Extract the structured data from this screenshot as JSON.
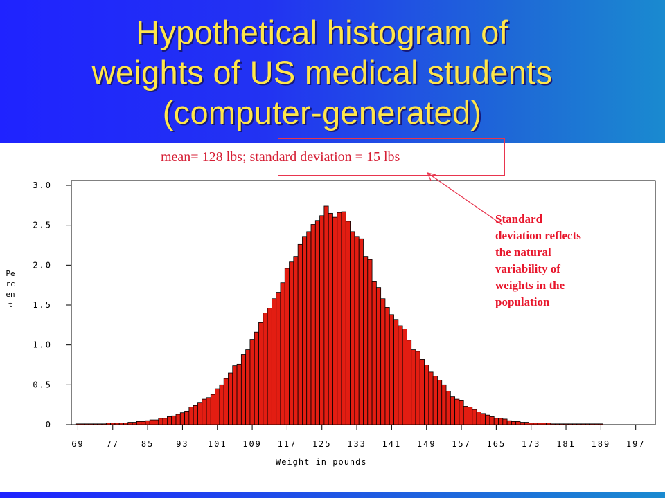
{
  "slide": {
    "title_lines": [
      "Hypothetical histogram of",
      "weights of US medical students",
      "(computer-generated)"
    ],
    "subtitle": "mean= 128 lbs; standard deviation = 15 lbs",
    "note_lines": [
      "Standard",
      "deviation reflects",
      "the natural",
      "variability of",
      "weights in the",
      "population"
    ],
    "colors": {
      "title_band": "#1f23ff",
      "title_text": "#ffe64a",
      "bar_fill": "#e31d12",
      "annotation": "#e8162c"
    }
  },
  "chart_data": {
    "type": "bar",
    "xlabel": "Weight in pounds",
    "ylabel": "Percent",
    "ylim": [
      0,
      3.0
    ],
    "xlim": [
      67.5,
      201.5
    ],
    "y_ticks": [
      0,
      0.5,
      1.0,
      1.5,
      2.0,
      2.5,
      3.0
    ],
    "y_tick_labels": [
      "0",
      "0.5",
      "1.0",
      "1.5",
      "2.0",
      "2.5",
      "3.0"
    ],
    "x_ticks": [
      69,
      77,
      85,
      93,
      101,
      109,
      117,
      125,
      133,
      141,
      149,
      157,
      165,
      173,
      181,
      189,
      197
    ],
    "x_tick_labels": [
      "69",
      "77",
      "85",
      "93",
      "101",
      "109",
      "117",
      "125",
      "133",
      "141",
      "149",
      "157",
      "165",
      "173",
      "181",
      "189",
      "197"
    ],
    "grid": false,
    "bar_start": 69,
    "bar_width": 1,
    "values": [
      0.01,
      0.01,
      0.01,
      0.01,
      0.01,
      0.01,
      0.01,
      0.02,
      0.02,
      0.02,
      0.02,
      0.02,
      0.03,
      0.03,
      0.04,
      0.04,
      0.05,
      0.06,
      0.06,
      0.08,
      0.08,
      0.1,
      0.11,
      0.13,
      0.15,
      0.17,
      0.22,
      0.24,
      0.28,
      0.32,
      0.34,
      0.38,
      0.45,
      0.5,
      0.58,
      0.65,
      0.74,
      0.76,
      0.88,
      0.94,
      1.07,
      1.16,
      1.28,
      1.4,
      1.46,
      1.58,
      1.66,
      1.78,
      1.96,
      2.04,
      2.11,
      2.26,
      2.36,
      2.42,
      2.51,
      2.56,
      2.62,
      2.74,
      2.65,
      2.6,
      2.66,
      2.67,
      2.55,
      2.42,
      2.36,
      2.33,
      2.11,
      2.07,
      1.8,
      1.72,
      1.58,
      1.47,
      1.38,
      1.32,
      1.24,
      1.2,
      1.06,
      0.94,
      0.92,
      0.82,
      0.75,
      0.66,
      0.61,
      0.56,
      0.5,
      0.42,
      0.35,
      0.32,
      0.3,
      0.23,
      0.22,
      0.19,
      0.16,
      0.14,
      0.12,
      0.1,
      0.08,
      0.08,
      0.07,
      0.05,
      0.04,
      0.04,
      0.03,
      0.03,
      0.02,
      0.02,
      0.02,
      0.02,
      0.02,
      0.01,
      0.01,
      0.01,
      0.01,
      0.01,
      0.01,
      0.01,
      0.01,
      0.01,
      0.01,
      0.01,
      0.01
    ]
  }
}
